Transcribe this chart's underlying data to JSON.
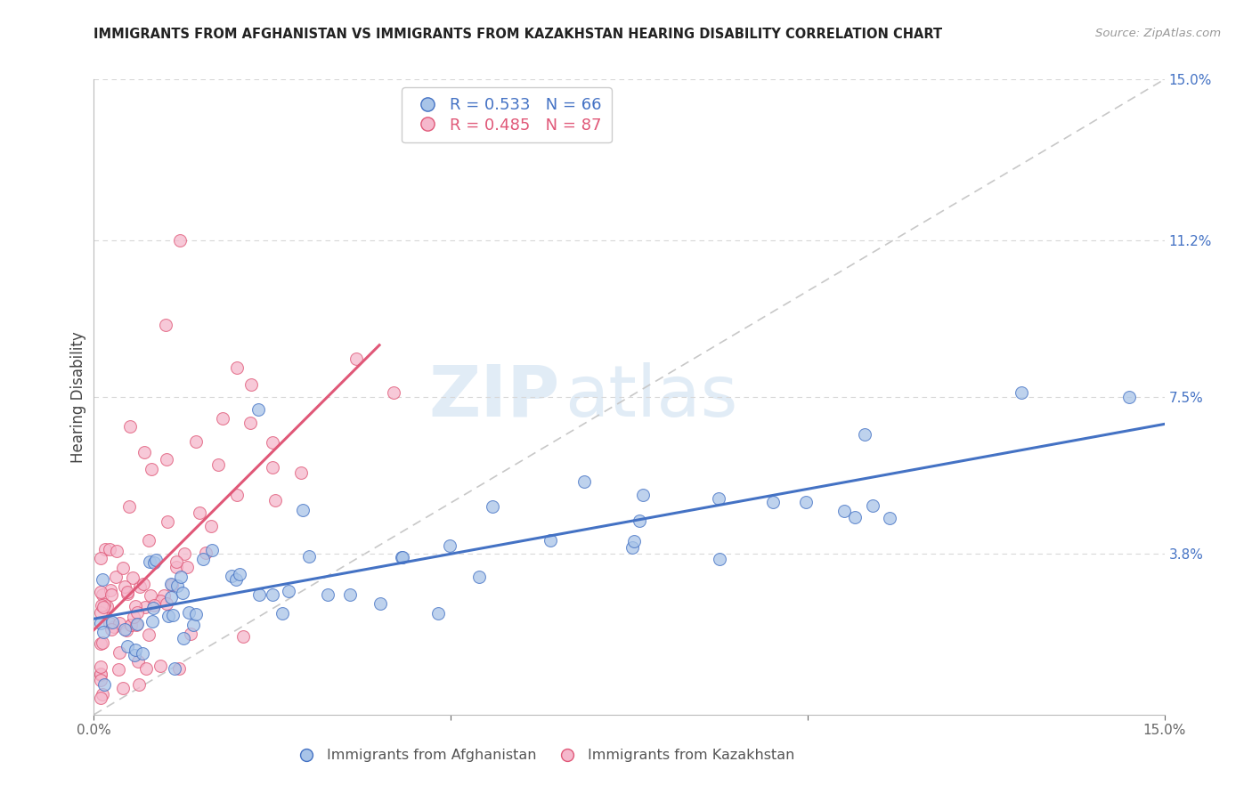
{
  "title": "IMMIGRANTS FROM AFGHANISTAN VS IMMIGRANTS FROM KAZAKHSTAN HEARING DISABILITY CORRELATION CHART",
  "source": "Source: ZipAtlas.com",
  "ylabel": "Hearing Disability",
  "xlim": [
    0.0,
    0.15
  ],
  "ylim": [
    0.0,
    0.15
  ],
  "afghanistan_color": "#a8c4e8",
  "kazakhstan_color": "#f5b8cc",
  "afghanistan_line_color": "#4472c4",
  "kazakhstan_line_color": "#e05878",
  "diagonal_color": "#c8c8c8",
  "R_afghanistan": 0.533,
  "N_afghanistan": 66,
  "R_kazakhstan": 0.485,
  "N_kazakhstan": 87,
  "legend_label_afghanistan": "Immigrants from Afghanistan",
  "legend_label_kazakhstan": "Immigrants from Kazakhstan",
  "watermark_zip": "ZIP",
  "watermark_atlas": "atlas",
  "background_color": "#ffffff",
  "grid_color": "#d8d8d8"
}
